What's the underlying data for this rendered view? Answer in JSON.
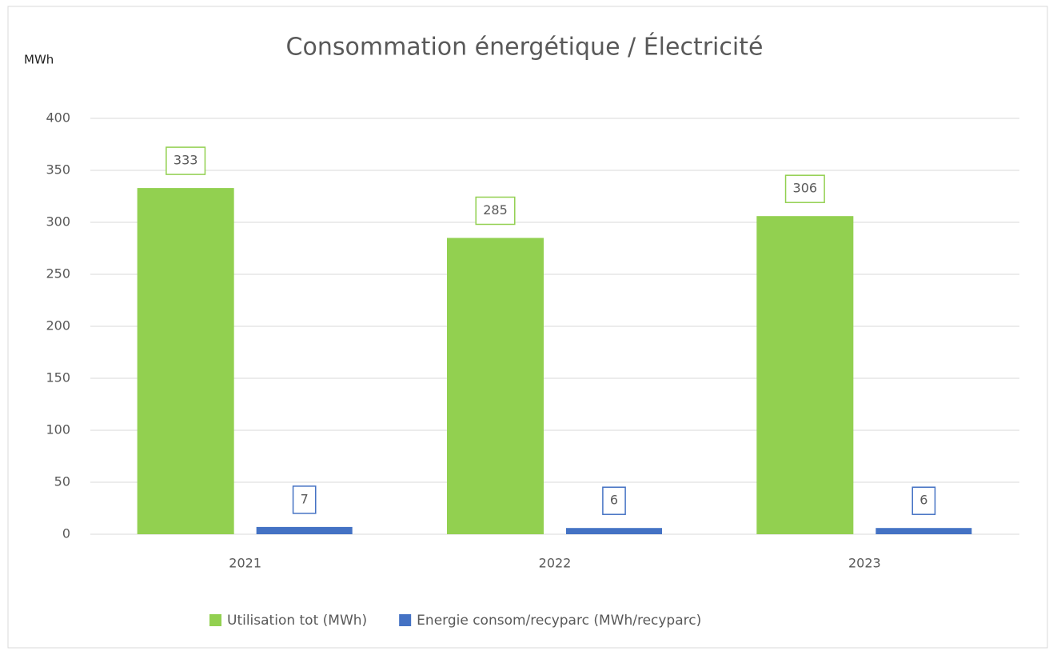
{
  "chart_data": {
    "type": "bar",
    "title": "Consommation énergétique / Électricité",
    "y_label": "MWh",
    "categories": [
      "2021",
      "2022",
      "2023"
    ],
    "series": [
      {
        "name": "Utilisation tot (MWh)",
        "color": "#92d050",
        "values": [
          333,
          285,
          306
        ]
      },
      {
        "name": "Energie consom/recyparc (MWh/recyparc)",
        "color": "#4472c4",
        "values": [
          7,
          6,
          6
        ]
      }
    ],
    "ylim": [
      0,
      400
    ],
    "yticks": [
      0,
      50,
      100,
      150,
      200,
      250,
      300,
      350,
      400
    ],
    "grid": true,
    "legend": "bottom"
  }
}
